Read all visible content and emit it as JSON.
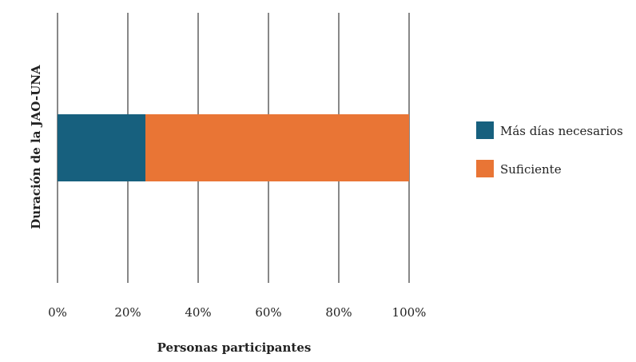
{
  "chart_data": {
    "type": "bar",
    "orientation": "horizontal",
    "stacked": true,
    "categories": [
      ""
    ],
    "series": [
      {
        "name": "Más días necesarios",
        "values": [
          25
        ],
        "color": "#17607e"
      },
      {
        "name": "Suficiente",
        "values": [
          75
        ],
        "color": "#e97535"
      }
    ],
    "xlabel": "Personas participantes",
    "ylabel": "Duración de la JAO-UNA",
    "xlim": [
      0,
      100
    ],
    "xticks": [
      0,
      20,
      40,
      60,
      80,
      100
    ],
    "xtick_labels": [
      "0%",
      "20%",
      "40%",
      "60%",
      "80%",
      "100%"
    ],
    "grid": true,
    "legend_position": "right"
  }
}
